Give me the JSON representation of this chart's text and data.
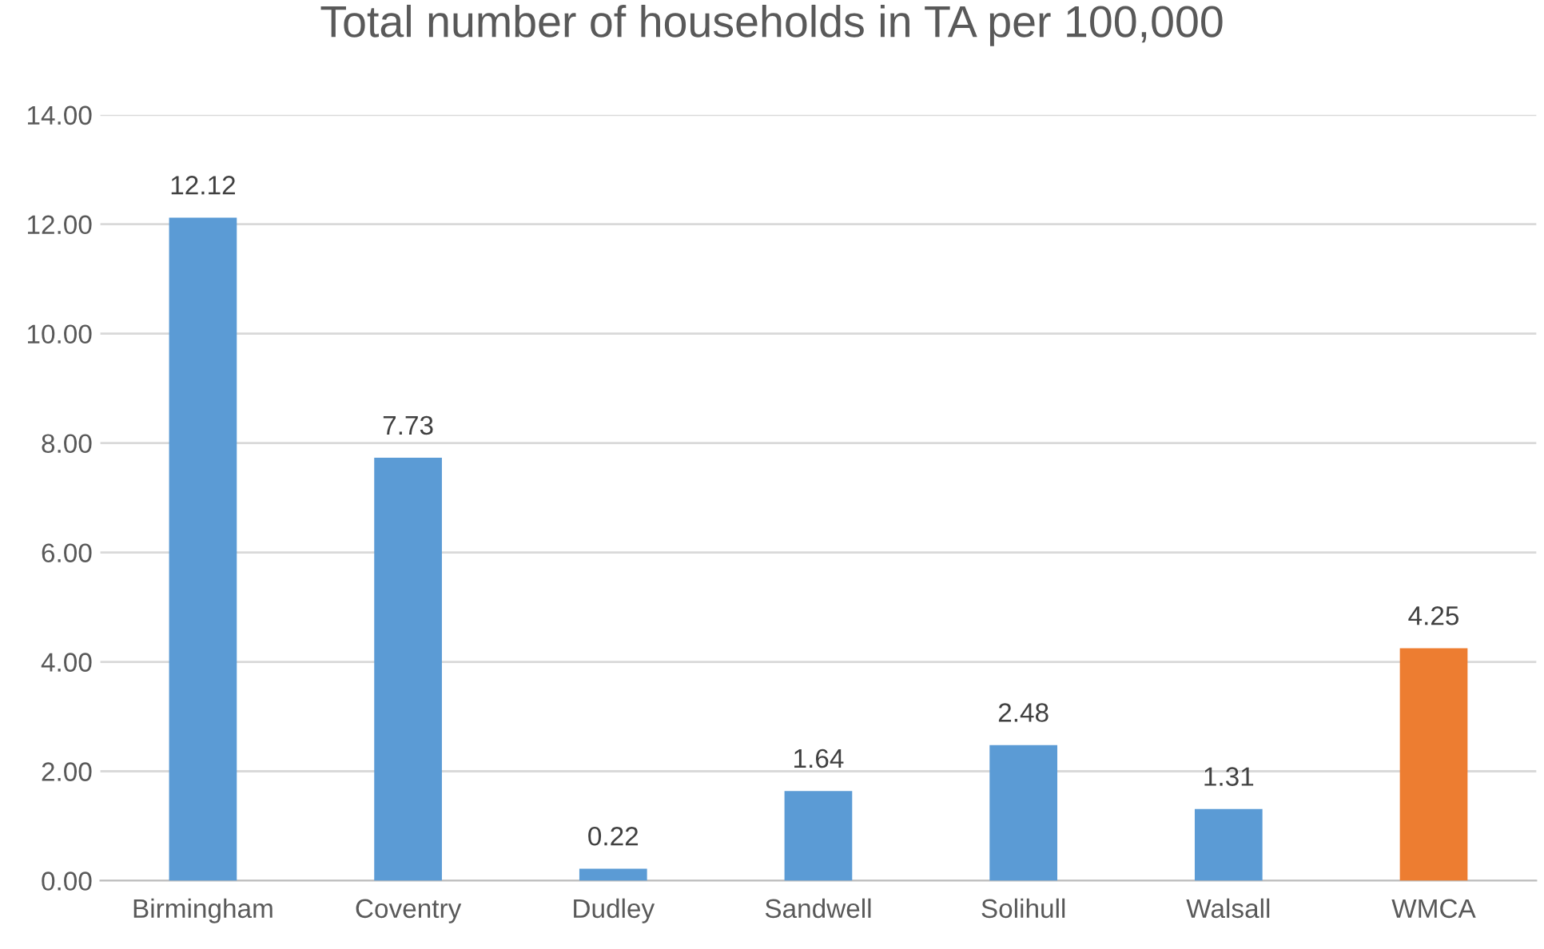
{
  "chart_data": {
    "type": "bar",
    "title": "Total number of households in TA per 100,000",
    "categories": [
      "Birmingham",
      "Coventry",
      "Dudley",
      "Sandwell",
      "Solihull",
      "Walsall",
      "WMCA"
    ],
    "values": [
      12.12,
      7.73,
      0.22,
      1.64,
      2.48,
      1.31,
      4.25
    ],
    "colors": [
      "#5b9bd5",
      "#5b9bd5",
      "#5b9bd5",
      "#5b9bd5",
      "#5b9bd5",
      "#5b9bd5",
      "#ed7d31"
    ],
    "ylim": [
      0,
      14
    ],
    "yticks": [
      {
        "value": 0,
        "label": "0.00"
      },
      {
        "value": 2,
        "label": "2.00"
      },
      {
        "value": 4,
        "label": "4.00"
      },
      {
        "value": 6,
        "label": "6.00"
      },
      {
        "value": 8,
        "label": "8.00"
      },
      {
        "value": 10,
        "label": "10.00"
      },
      {
        "value": 12,
        "label": "12.00"
      },
      {
        "value": 14,
        "label": "14.00"
      }
    ],
    "grid": "y",
    "data_labels": true
  }
}
